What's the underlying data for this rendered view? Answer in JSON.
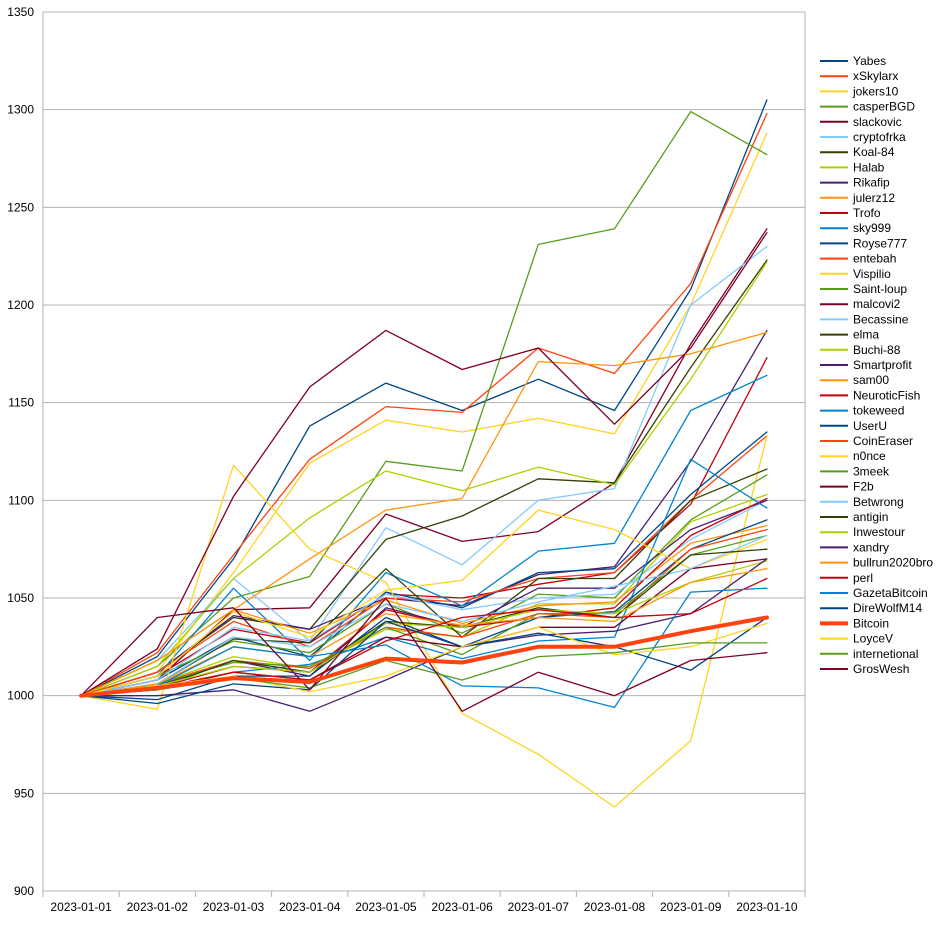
{
  "chart_data": {
    "type": "line",
    "title": "",
    "xlabel": "",
    "ylabel": "",
    "x": [
      "2023-01-01",
      "2023-01-02",
      "2023-01-03",
      "2023-01-04",
      "2023-01-05",
      "2023-01-06",
      "2023-01-07",
      "2023-01-08",
      "2023-01-09",
      "2023-01-10"
    ],
    "ylim": [
      900,
      1350
    ],
    "yticks": [
      900,
      950,
      1000,
      1050,
      1100,
      1150,
      1200,
      1250,
      1300,
      1350
    ],
    "grid": true,
    "legend_position": "right",
    "series": [
      {
        "name": "Yabes",
        "color": "#004586",
        "values": [
          1000,
          1020,
          1070,
          1138,
          1160,
          1146,
          1162,
          1146,
          1208,
          1305
        ]
      },
      {
        "name": "xSkylarx",
        "color": "#ff420e",
        "values": [
          1000,
          1022,
          1072,
          1121,
          1148,
          1145,
          1178,
          1165,
          1211,
          1298
        ]
      },
      {
        "name": "jokers10",
        "color": "#ffd320",
        "values": [
          1000,
          1012,
          1063,
          1119,
          1141,
          1135,
          1142,
          1134,
          1200,
          1288
        ]
      },
      {
        "name": "casperBGD",
        "color": "#579d1c",
        "values": [
          1000,
          1015,
          1050,
          1061,
          1120,
          1115,
          1231,
          1239,
          1299,
          1277
        ]
      },
      {
        "name": "slackovic",
        "color": "#7e0021",
        "values": [
          1000,
          1008,
          1044,
          1045,
          1093,
          1079,
          1084,
          1109,
          1180,
          1239
        ]
      },
      {
        "name": "cryptofrka",
        "color": "#83caff",
        "values": [
          1000,
          1018,
          1060,
          1028,
          1086,
          1067,
          1100,
          1106,
          1200,
          1230
        ]
      },
      {
        "name": "Koal-84",
        "color": "#314004",
        "values": [
          1000,
          1012,
          1040,
          1034,
          1080,
          1092,
          1111,
          1109,
          1168,
          1223
        ]
      },
      {
        "name": "Halab",
        "color": "#aecf00",
        "values": [
          1000,
          1015,
          1060,
          1091,
          1115,
          1105,
          1117,
          1108,
          1162,
          1222
        ]
      },
      {
        "name": "Rikafip",
        "color": "#4b1f6f",
        "values": [
          1000,
          1012,
          1041,
          1034,
          1050,
          1046,
          1062,
          1066,
          1120,
          1187
        ]
      },
      {
        "name": "julerz12",
        "color": "#ff950e",
        "values": [
          1000,
          1018,
          1044,
          1070,
          1095,
          1101,
          1171,
          1169,
          1175,
          1186
        ]
      },
      {
        "name": "Trofo",
        "color": "#c5000b",
        "values": [
          1000,
          1010,
          1034,
          1027,
          1052,
          1050,
          1057,
          1063,
          1098,
          1173
        ]
      },
      {
        "name": "sky999",
        "color": "#0084d1",
        "values": [
          1000,
          1010,
          1055,
          1018,
          1063,
          1046,
          1074,
          1078,
          1146,
          1164
        ]
      },
      {
        "name": "Royse777",
        "color": "#004586",
        "values": [
          1000,
          1008,
          1030,
          1020,
          1053,
          1045,
          1063,
          1065,
          1103,
          1135
        ]
      },
      {
        "name": "entebah",
        "color": "#ff420e",
        "values": [
          1000,
          1012,
          1038,
          1025,
          1050,
          1048,
          1060,
          1063,
          1100,
          1133
        ]
      },
      {
        "name": "Vispilio",
        "color": "#ffd320",
        "values": [
          1000,
          993,
          1118,
          1075,
          1058,
          991,
          970,
          943,
          977,
          1133
        ]
      },
      {
        "name": "Saint-loup",
        "color": "#579d1c",
        "values": [
          1000,
          1010,
          1028,
          1022,
          1047,
          1032,
          1052,
          1050,
          1090,
          1113
        ]
      },
      {
        "name": "malcovi2",
        "color": "#7e0021",
        "values": [
          1000,
          1024,
          1102,
          1158,
          1187,
          1167,
          1178,
          1139,
          1178,
          1237
        ]
      },
      {
        "name": "Becassine",
        "color": "#83caff",
        "values": [
          1000,
          1008,
          1035,
          1028,
          1052,
          1044,
          1050,
          1052,
          1080,
          1100
        ]
      },
      {
        "name": "elma",
        "color": "#314004",
        "values": [
          1000,
          1006,
          1029,
          1027,
          1065,
          1030,
          1060,
          1060,
          1100,
          1116
        ]
      },
      {
        "name": "Buchi-88",
        "color": "#aecf00",
        "values": [
          1000,
          1006,
          1020,
          1014,
          1034,
          1030,
          1047,
          1047,
          1089,
          1103
        ]
      },
      {
        "name": "Smartprofit",
        "color": "#4b1f6f",
        "values": [
          1000,
          1005,
          1018,
          1010,
          1045,
          1035,
          1055,
          1055,
          1085,
          1100
        ]
      },
      {
        "name": "sam00",
        "color": "#ff950e",
        "values": [
          1000,
          1018,
          1044,
          1032,
          1049,
          1037,
          1046,
          1048,
          1078,
          1087
        ]
      },
      {
        "name": "NeuroticFish",
        "color": "#c5000b",
        "values": [
          1000,
          1004,
          1015,
          1012,
          1044,
          1035,
          1040,
          1045,
          1082,
          1101
        ]
      },
      {
        "name": "tokeweed",
        "color": "#0084d1",
        "values": [
          1000,
          1003,
          1012,
          1016,
          1030,
          1019,
          1028,
          1030,
          1121,
          1096
        ]
      },
      {
        "name": "UserU",
        "color": "#004586",
        "values": [
          1000,
          998,
          1010,
          1010,
          1040,
          1025,
          1040,
          1043,
          1075,
          1090
        ]
      },
      {
        "name": "CoinEraser",
        "color": "#ff420e",
        "values": [
          1000,
          1006,
          1018,
          1014,
          1035,
          1030,
          1042,
          1040,
          1075,
          1085
        ]
      },
      {
        "name": "n0nce",
        "color": "#ffd320",
        "values": [
          1000,
          1010,
          1043,
          1030,
          1054,
          1059,
          1095,
          1085,
          1065,
          1080
        ]
      },
      {
        "name": "3meek",
        "color": "#579d1c",
        "values": [
          1000,
          1006,
          1017,
          1015,
          1035,
          1021,
          1042,
          1042,
          1072,
          1082
        ]
      },
      {
        "name": "F2b",
        "color": "#7e0021",
        "values": [
          1000,
          1003,
          1012,
          1008,
          1030,
          1025,
          1035,
          1035,
          1065,
          1070
        ]
      },
      {
        "name": "Betwrong",
        "color": "#83caff",
        "values": [
          1000,
          1006,
          1030,
          1025,
          1047,
          1038,
          1048,
          1056,
          1065,
          1082
        ]
      },
      {
        "name": "antigin",
        "color": "#314004",
        "values": [
          1000,
          1004,
          1018,
          1012,
          1038,
          1035,
          1045,
          1040,
          1072,
          1075
        ]
      },
      {
        "name": "Inwestour",
        "color": "#aecf00",
        "values": [
          1000,
          1005,
          1015,
          1012,
          1037,
          1035,
          1044,
          1042,
          1058,
          1069
        ]
      },
      {
        "name": "xandry",
        "color": "#4b1f6f",
        "values": [
          1000,
          1000,
          1003,
          992,
          1008,
          1025,
          1031,
          1033,
          1042,
          1070
        ]
      },
      {
        "name": "bullrun2020bro",
        "color": "#ff950e",
        "values": [
          1000,
          1006,
          1025,
          1020,
          1042,
          1036,
          1040,
          1038,
          1058,
          1065
        ]
      },
      {
        "name": "perl",
        "color": "#c5000b",
        "values": [
          1000,
          1004,
          1012,
          1008,
          1028,
          1040,
          1044,
          1040,
          1042,
          1060
        ]
      },
      {
        "name": "GazetaBitcoin",
        "color": "#0084d1",
        "values": [
          1000,
          1005,
          1025,
          1020,
          1026,
          1005,
          1004,
          994,
          1053,
          1055
        ]
      },
      {
        "name": "DireWolfM14",
        "color": "#004586",
        "values": [
          1000,
          996,
          1006,
          1003,
          1038,
          1025,
          1032,
          1025,
          1013,
          1040
        ]
      },
      {
        "name": "Bitcoin",
        "color": "#ff420e",
        "width": 4,
        "values": [
          1000,
          1004,
          1009,
          1007,
          1019,
          1017,
          1025,
          1025,
          1033,
          1040
        ]
      },
      {
        "name": "LoyceV",
        "color": "#ffd320",
        "values": [
          1000,
          1005,
          1010,
          1002,
          1010,
          1025,
          1035,
          1021,
          1025,
          1037
        ]
      },
      {
        "name": "internetional",
        "color": "#579d1c",
        "values": [
          1000,
          1003,
          1009,
          1004,
          1018,
          1008,
          1020,
          1022,
          1027,
          1027
        ]
      },
      {
        "name": "GrosWesh",
        "color": "#7e0021",
        "values": [
          1000,
          1040,
          1045,
          1003,
          1050,
          992,
          1012,
          1000,
          1018,
          1022
        ]
      }
    ]
  }
}
